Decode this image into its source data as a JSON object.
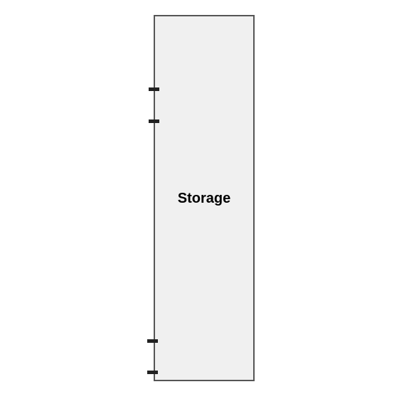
{
  "diagram": {
    "room": {
      "label": "Storage"
    }
  },
  "colors": {
    "room_fill": "#f0f0f0",
    "room_border": "#555555",
    "wall_marks": "#222222",
    "background": "#ffffff"
  }
}
